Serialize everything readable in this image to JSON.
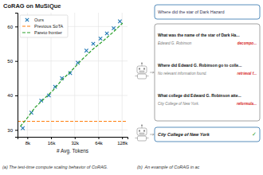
{
  "chart_data": {
    "type": "scatter",
    "title": "CoRAG on MuSiQue",
    "xlabel": "# Avg. Tokens",
    "log": "x",
    "xlim": [
      6000,
      150000
    ],
    "xticks": [
      {
        "value": 8000,
        "label": "8k"
      },
      {
        "value": 16000,
        "label": "16k"
      },
      {
        "value": 32000,
        "label": "32k"
      },
      {
        "value": 64000,
        "label": "64k"
      },
      {
        "value": 128000,
        "label": "128k"
      }
    ],
    "ylim": [
      28,
      64
    ],
    "yticks": [
      30,
      40,
      50,
      60
    ],
    "grid": true,
    "legend": "upper left",
    "series": [
      {
        "name": "Ours",
        "type": "scatter",
        "marker": "x",
        "x": [
          7000,
          9000,
          12000,
          15000,
          18000,
          22000,
          28000,
          35000,
          45000,
          55000,
          68000,
          82000,
          100000,
          120000
        ],
        "values": [
          30.5,
          35.0,
          38.5,
          40.0,
          42.5,
          45.0,
          46.5,
          49.5,
          53.0,
          55.0,
          56.5,
          58.0,
          59.5,
          61.5
        ]
      },
      {
        "name": "Previous SoTA",
        "type": "hline",
        "line_style": "dashed",
        "values": [
          32.5
        ]
      },
      {
        "name": "Pareto frontier",
        "type": "line",
        "line_style": "dashed",
        "x": [
          6500,
          8000,
          10000,
          13000,
          17000,
          22000,
          30000,
          40000,
          55000,
          75000,
          100000,
          130000
        ],
        "values": [
          31.0,
          33.5,
          36.5,
          39.0,
          41.5,
          44.5,
          47.5,
          50.5,
          53.5,
          56.0,
          58.5,
          61.0
        ]
      }
    ],
    "annotations": [
      "Where did the star of Dark Hazard",
      "What was the name of the star of Dark Ha...",
      "Edward G. Robinson",
      "decompo...",
      "Where did Edward G. Robinson go to colle...",
      "No relevant information found.",
      "retrieval f...",
      "What college did Edward G. Robinson atte...",
      "City College of New York.",
      "reformula...",
      "City College of New York",
      "✓",
      "(a) The test-time compute scaling behavior of CoRAG.",
      "(b)  An example of CoRAG in ac"
    ]
  }
}
